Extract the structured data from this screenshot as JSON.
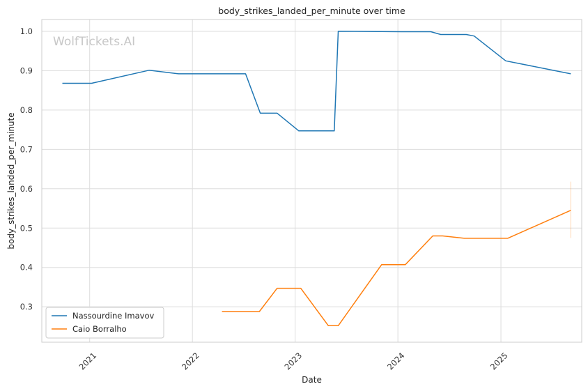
{
  "chart_data": {
    "type": "line",
    "title": "body_strikes_landed_per_minute over time",
    "xlabel": "Date",
    "ylabel": "body_strikes_landed_per_minute",
    "watermark": "WolfTickets.AI",
    "xlim": [
      "2020-07-15",
      "2025-10-15"
    ],
    "ylim": [
      0.21,
      1.03
    ],
    "x_ticks": [
      "2021-01-01",
      "2022-01-01",
      "2023-01-01",
      "2024-01-01",
      "2025-01-01"
    ],
    "x_tick_labels": [
      "2021",
      "2022",
      "2023",
      "2024",
      "2025"
    ],
    "y_ticks": [
      0.3,
      0.4,
      0.5,
      0.6,
      0.7,
      0.8,
      0.9,
      1.0
    ],
    "y_tick_labels": [
      "0.3",
      "0.4",
      "0.5",
      "0.6",
      "0.7",
      "0.8",
      "0.9",
      "1.0"
    ],
    "grid": true,
    "legend_position": "bottom-left",
    "series": [
      {
        "name": "Nassourdine Imavov",
        "color": "#1f77b4",
        "x": [
          "2020-09-26",
          "2021-01-08",
          "2021-07-31",
          "2021-11-13",
          "2022-07-09",
          "2022-08-30",
          "2022-10-29",
          "2023-01-14",
          "2023-05-20",
          "2023-06-03",
          "2024-01-13",
          "2024-04-27",
          "2024-06-01",
          "2024-08-31",
          "2024-09-28",
          "2025-01-18",
          "2025-09-06"
        ],
        "values": [
          0.868,
          0.868,
          0.901,
          0.892,
          0.892,
          0.792,
          0.792,
          0.747,
          0.747,
          1.0,
          0.999,
          0.999,
          0.992,
          0.992,
          0.988,
          0.925,
          0.892
        ]
      },
      {
        "name": "Caio Borralho",
        "color": "#ff7f0e",
        "x": [
          "2022-04-16",
          "2022-08-27",
          "2022-10-29",
          "2023-01-21",
          "2023-04-29",
          "2023-06-03",
          "2023-11-04",
          "2024-01-27",
          "2024-05-04",
          "2024-06-08",
          "2024-08-24",
          "2025-01-25",
          "2025-09-06"
        ],
        "values": [
          0.288,
          0.288,
          0.347,
          0.347,
          0.252,
          0.252,
          0.407,
          0.407,
          0.48,
          0.48,
          0.474,
          0.474,
          0.545
        ],
        "error_band": {
          "x": "2025-09-06",
          "low": 0.475,
          "high": 0.618
        }
      }
    ]
  }
}
